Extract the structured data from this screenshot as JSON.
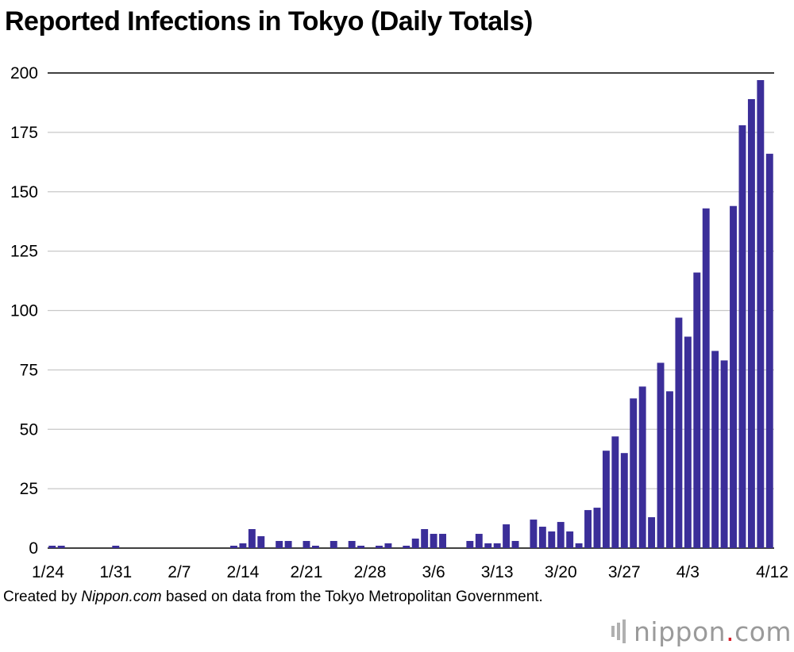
{
  "chart_data": {
    "type": "bar",
    "title": "Reported Infections in Tokyo (Daily Totals)",
    "xlabel": "",
    "ylabel": "",
    "ylim": [
      0,
      200
    ],
    "yticks": [
      0,
      25,
      50,
      75,
      100,
      125,
      150,
      175,
      200
    ],
    "xtick_labels": [
      "1/24",
      "1/31",
      "2/7",
      "2/14",
      "2/21",
      "2/28",
      "3/6",
      "3/13",
      "3/20",
      "3/27",
      "4/3",
      "4/12"
    ],
    "xtick_day_index": [
      0,
      7,
      14,
      21,
      28,
      35,
      42,
      49,
      56,
      63,
      70,
      79
    ],
    "date_range": [
      "1/24",
      "4/12"
    ],
    "values": [
      1,
      1,
      0,
      0,
      0,
      0,
      0,
      1,
      0,
      0,
      0,
      0,
      0,
      0,
      0,
      0,
      0,
      0,
      0,
      0,
      1,
      2,
      8,
      5,
      0,
      3,
      3,
      0,
      3,
      1,
      0,
      3,
      0,
      3,
      1,
      0,
      1,
      2,
      0,
      1,
      4,
      8,
      6,
      6,
      0,
      0,
      3,
      6,
      2,
      2,
      10,
      3,
      0,
      12,
      9,
      7,
      11,
      7,
      2,
      16,
      17,
      41,
      47,
      40,
      63,
      68,
      13,
      78,
      66,
      97,
      89,
      116,
      143,
      83,
      79,
      144,
      178,
      189,
      197,
      166
    ],
    "bar_color": "#3b2e99"
  },
  "footer": {
    "prefix": "Created by ",
    "source_italic": "Nippon.com",
    "suffix": " based on data from the Tokyo Metropolitan Government."
  },
  "logo": {
    "name": "nippon",
    "dot": ".",
    "tld": "com"
  }
}
